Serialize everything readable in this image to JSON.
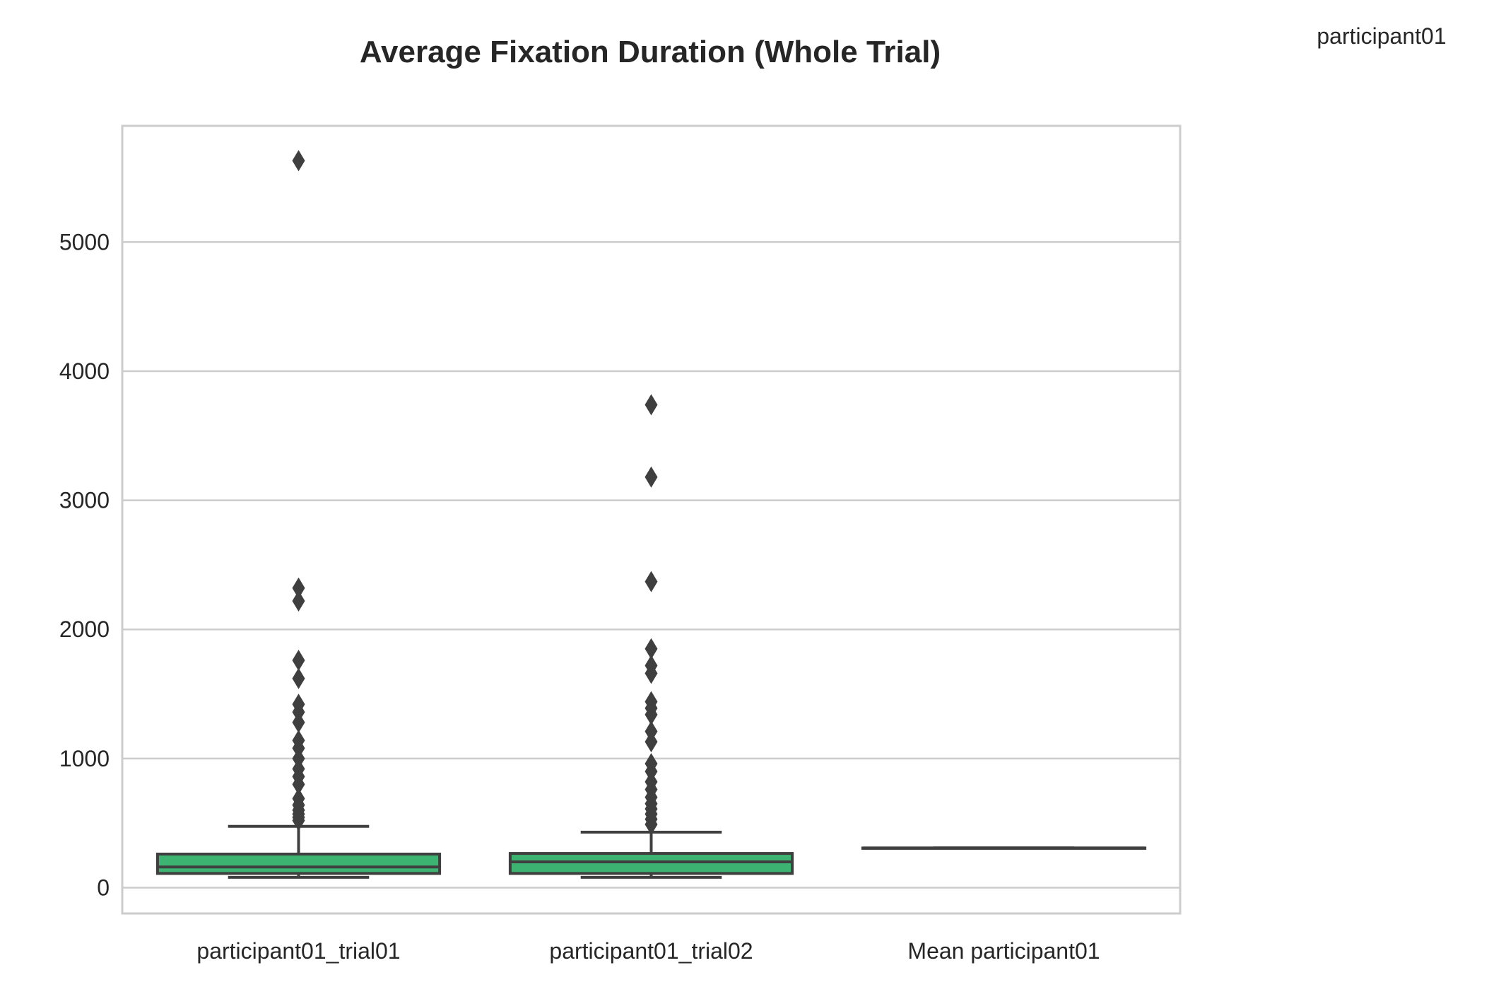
{
  "chart_data": {
    "type": "box",
    "title": "Average Fixation Duration (Whole Trial)",
    "legend_label": "participant01",
    "legend_placement": "top-right",
    "xlabel": "",
    "ylabel": "",
    "ylim": [
      -200,
      5900
    ],
    "yticks": [
      0,
      1000,
      2000,
      3000,
      4000,
      5000
    ],
    "ytick_labels": [
      "0",
      "1000",
      "2000",
      "3000",
      "4000",
      "5000"
    ],
    "grid": true,
    "box_color": "#3cb371",
    "line_color": "#3f3f3f",
    "categories": [
      "participant01_trial01",
      "participant01_trial02",
      "Mean participant01"
    ],
    "boxes": [
      {
        "category": "participant01_trial01",
        "whisker_low": 80,
        "q1": 110,
        "median": 160,
        "q3": 260,
        "whisker_high": 475,
        "fliers": [
          5630,
          2320,
          2220,
          1760,
          1620,
          1420,
          1360,
          1280,
          1140,
          1080,
          1000,
          920,
          860,
          800,
          690,
          640,
          600,
          570,
          545,
          520
        ]
      },
      {
        "category": "participant01_trial02",
        "whisker_low": 80,
        "q1": 110,
        "median": 200,
        "q3": 265,
        "whisker_high": 430,
        "fliers": [
          3740,
          3180,
          2370,
          1850,
          1720,
          1660,
          1440,
          1390,
          1340,
          1210,
          1130,
          960,
          900,
          820,
          760,
          700,
          650,
          610,
          570,
          530,
          490
        ]
      },
      {
        "category": "Mean participant01",
        "whisker_low": 307,
        "q1": 307,
        "median": 307,
        "q3": 307,
        "whisker_high": 307,
        "fliers": []
      }
    ]
  }
}
